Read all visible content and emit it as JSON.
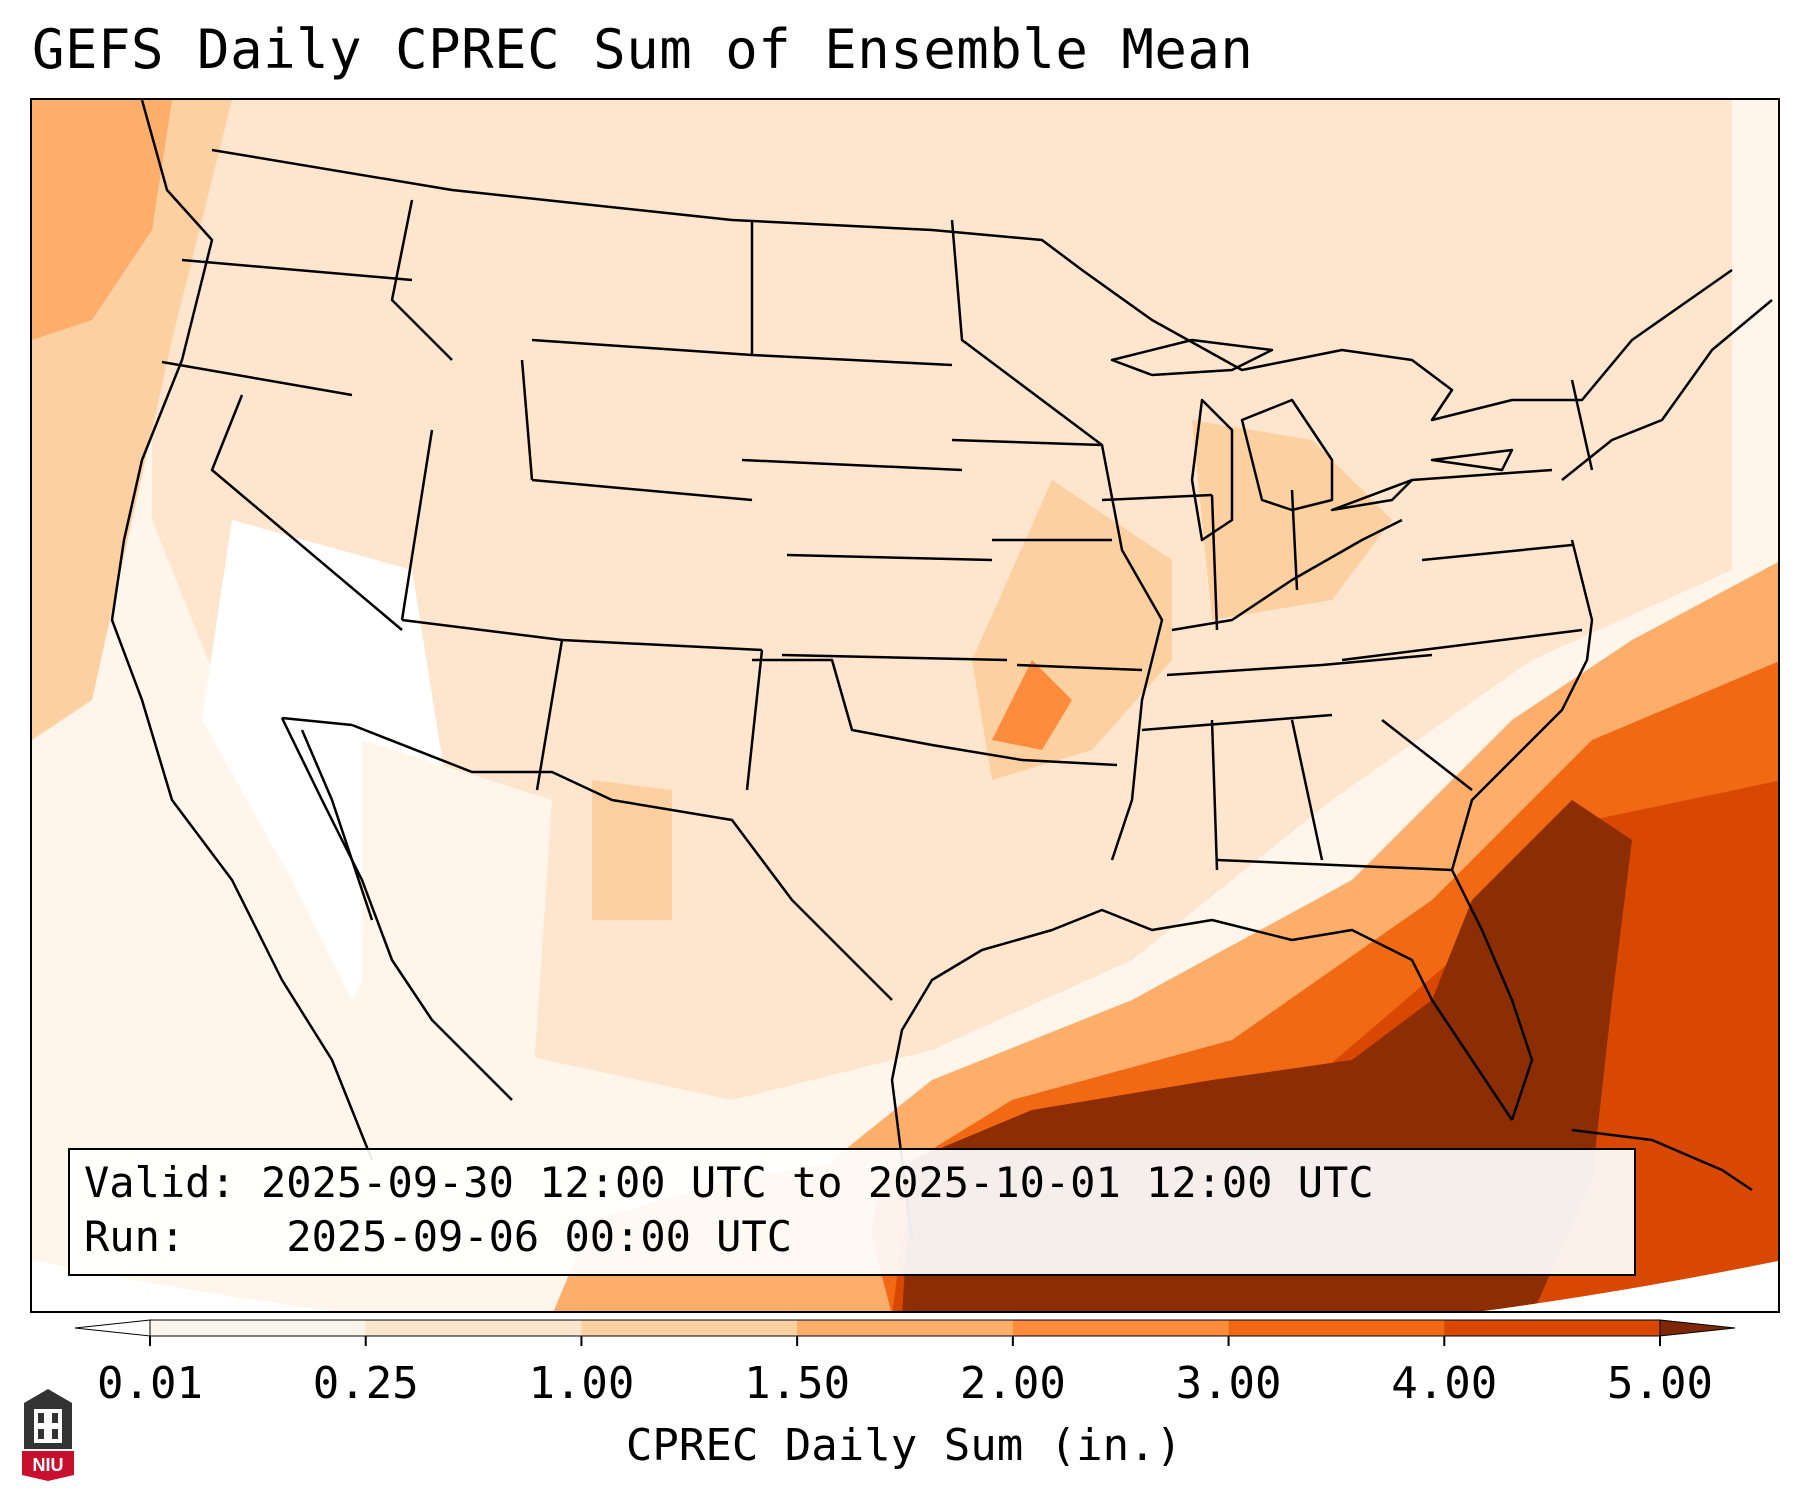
{
  "title": "GEFS Daily CPREC Sum of Ensemble Mean",
  "info": {
    "valid_label": "Valid:",
    "valid_value": "2025-09-30 12:00 UTC to 2025-10-01 12:00 UTC",
    "run_label": "Run:",
    "run_value": "2025-09-06 00:00 UTC"
  },
  "colorbar": {
    "label": "CPREC Daily Sum (in.)",
    "ticks": [
      "0.01",
      "0.25",
      "1.00",
      "1.50",
      "2.00",
      "3.00",
      "4.00",
      "5.00"
    ],
    "colors": [
      "#fff5eb",
      "#fee6ce",
      "#fdd0a2",
      "#fdae6b",
      "#fd8d3c",
      "#f16913",
      "#d94801",
      "#8c2d04"
    ],
    "under_color": "#ffffff",
    "over_color": "#7f2704",
    "extend": "both"
  },
  "map": {
    "projection": "Lambert conformal (CONUS)",
    "field": "convective precipitation, ensemble mean daily sum",
    "coastline_color": "#000000",
    "heaviest_region": "Gulf of Mexico and western Atlantic off the Southeast coast"
  },
  "logo": {
    "text": "NIU",
    "name": "niu-logo-icon"
  }
}
